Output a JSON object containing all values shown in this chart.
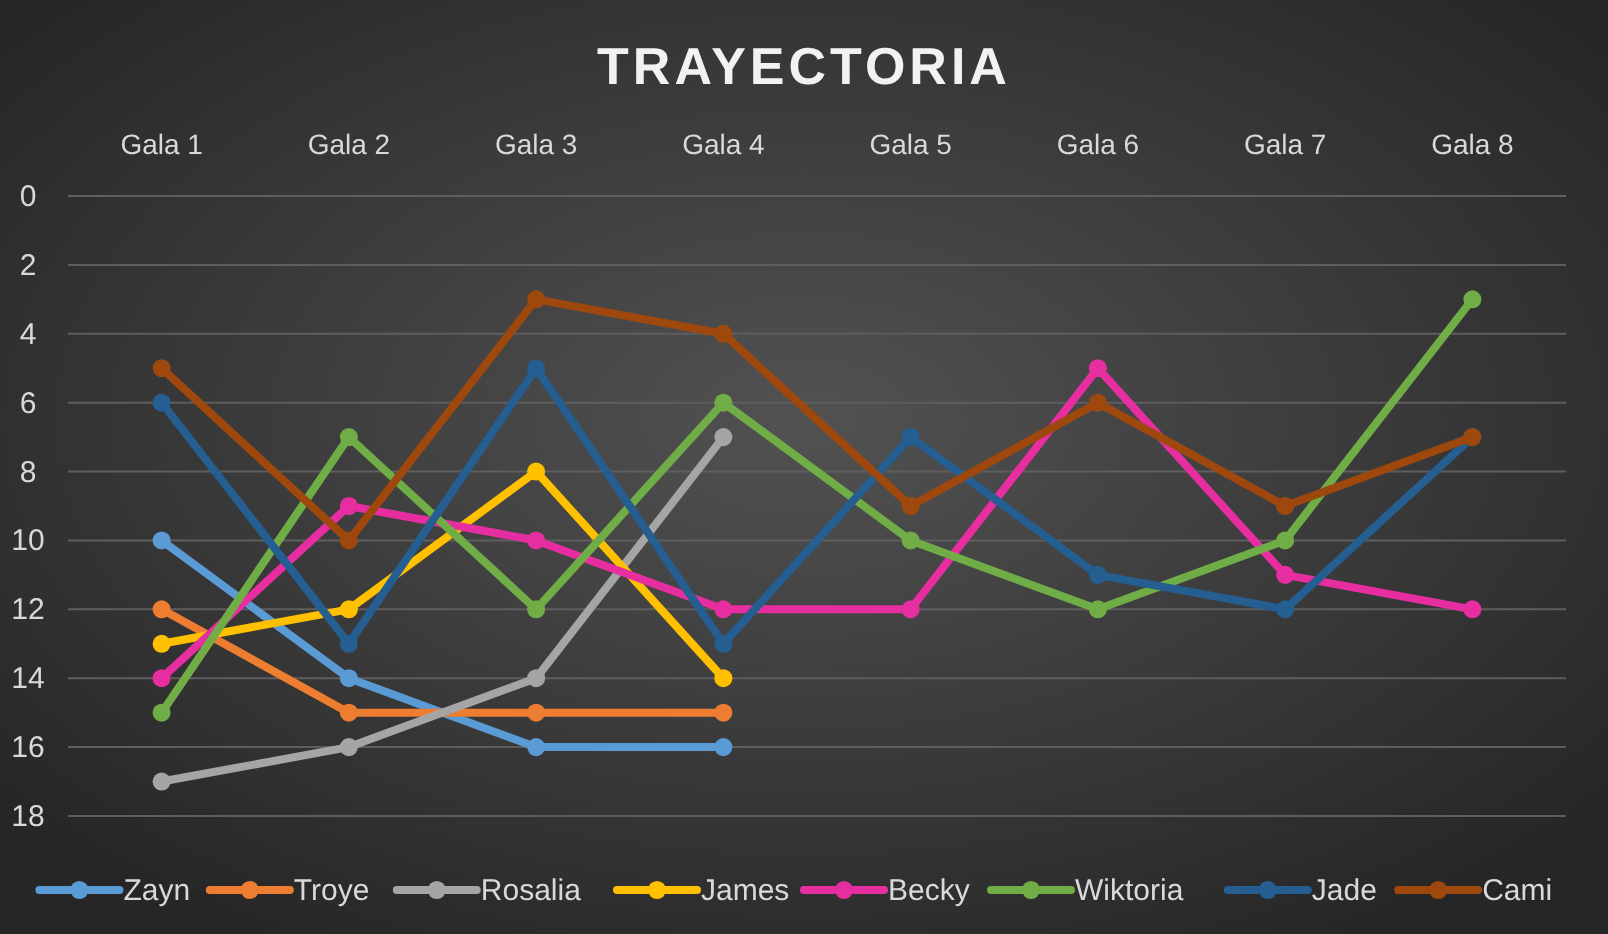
{
  "chart_data": {
    "type": "line",
    "title": "TRAYECTORIA",
    "categories": [
      "Gala 1",
      "Gala 2",
      "Gala 3",
      "Gala 4",
      "Gala 5",
      "Gala 6",
      "Gala 7",
      "Gala 8"
    ],
    "ylim": [
      18,
      0
    ],
    "yticks": [
      0,
      2,
      4,
      6,
      8,
      10,
      12,
      14,
      16,
      18
    ],
    "grid": "y",
    "legend": "bottom",
    "marker": "circle",
    "line_style": "solid",
    "series": [
      {
        "name": "Zayn",
        "color": "#5b9bd5",
        "values": [
          10,
          14,
          16,
          16,
          null,
          null,
          null,
          null
        ]
      },
      {
        "name": "Troye",
        "color": "#ed7d31",
        "values": [
          12,
          15,
          15,
          15,
          null,
          null,
          null,
          null
        ]
      },
      {
        "name": "Rosalia",
        "color": "#a5a5a5",
        "values": [
          17,
          16,
          14,
          7,
          null,
          null,
          null,
          null
        ]
      },
      {
        "name": "James",
        "color": "#ffc000",
        "values": [
          13,
          12,
          8,
          14,
          null,
          null,
          null,
          null
        ]
      },
      {
        "name": "Becky",
        "color": "#e62ea0",
        "values": [
          14,
          9,
          10,
          12,
          12,
          5,
          11,
          12
        ]
      },
      {
        "name": "Wiktoria",
        "color": "#70ad47",
        "values": [
          15,
          7,
          12,
          6,
          10,
          12,
          10,
          3
        ]
      },
      {
        "name": "Jade",
        "color": "#255e91",
        "values": [
          6,
          13,
          5,
          13,
          7,
          11,
          12,
          7
        ]
      },
      {
        "name": "Cami",
        "color": "#9e480e",
        "values": [
          5,
          10,
          3,
          4,
          9,
          6,
          9,
          7
        ]
      }
    ]
  }
}
